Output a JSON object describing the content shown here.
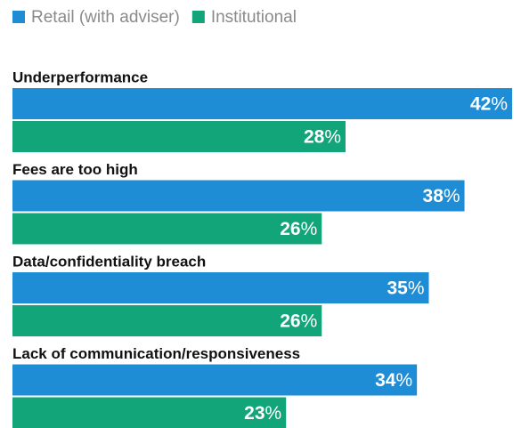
{
  "chart_data": {
    "type": "bar",
    "orientation": "horizontal",
    "categories": [
      "Underperformance",
      "Fees are too high",
      "Data/confidentiality breach",
      "Lack of communication/responsiveness"
    ],
    "series": [
      {
        "name": "Retail (with adviser)",
        "color": "#1f8dd6",
        "values": [
          42,
          38,
          35,
          34
        ],
        "value_labels": [
          "42%",
          "38%",
          "35%",
          "34%"
        ]
      },
      {
        "name": "Institutional",
        "color": "#12a579",
        "values": [
          28,
          26,
          26,
          23
        ],
        "value_labels": [
          "28%",
          "26%",
          "26%",
          "23%"
        ]
      }
    ],
    "legend": "top-left"
  }
}
